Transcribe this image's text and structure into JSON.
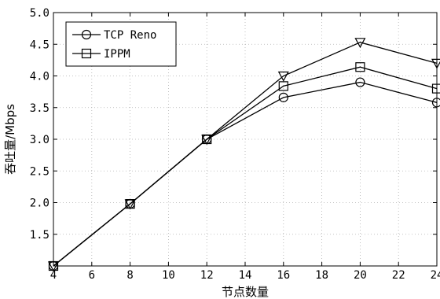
{
  "chart_data": {
    "type": "line",
    "xlabel": "节点数量",
    "ylabel": "吞吐量/Mbps",
    "xlim": [
      4,
      24
    ],
    "ylim": [
      1.0,
      5.0
    ],
    "xticks": [
      "4",
      "6",
      "8",
      "10",
      "12",
      "14",
      "16",
      "18",
      "20",
      "22",
      "24"
    ],
    "yticks": [
      "5.0",
      "4.5",
      "4.0",
      "3.5",
      "3.0",
      "2.5",
      "2.0",
      "1.5"
    ],
    "grid": true,
    "legend_position": "top-left",
    "x": [
      4,
      8,
      12,
      16,
      20,
      24
    ],
    "series": [
      {
        "name": "TCP Reno",
        "marker": "circle",
        "values": [
          1.0,
          1.98,
          3.0,
          3.66,
          3.9,
          3.58
        ]
      },
      {
        "name": "IPPM",
        "marker": "square",
        "values": [
          1.0,
          1.98,
          3.0,
          3.84,
          4.14,
          3.8
        ]
      },
      {
        "name": "",
        "marker": "triangle-down",
        "values": [
          1.0,
          1.98,
          3.0,
          4.0,
          4.53,
          4.2
        ]
      }
    ]
  }
}
